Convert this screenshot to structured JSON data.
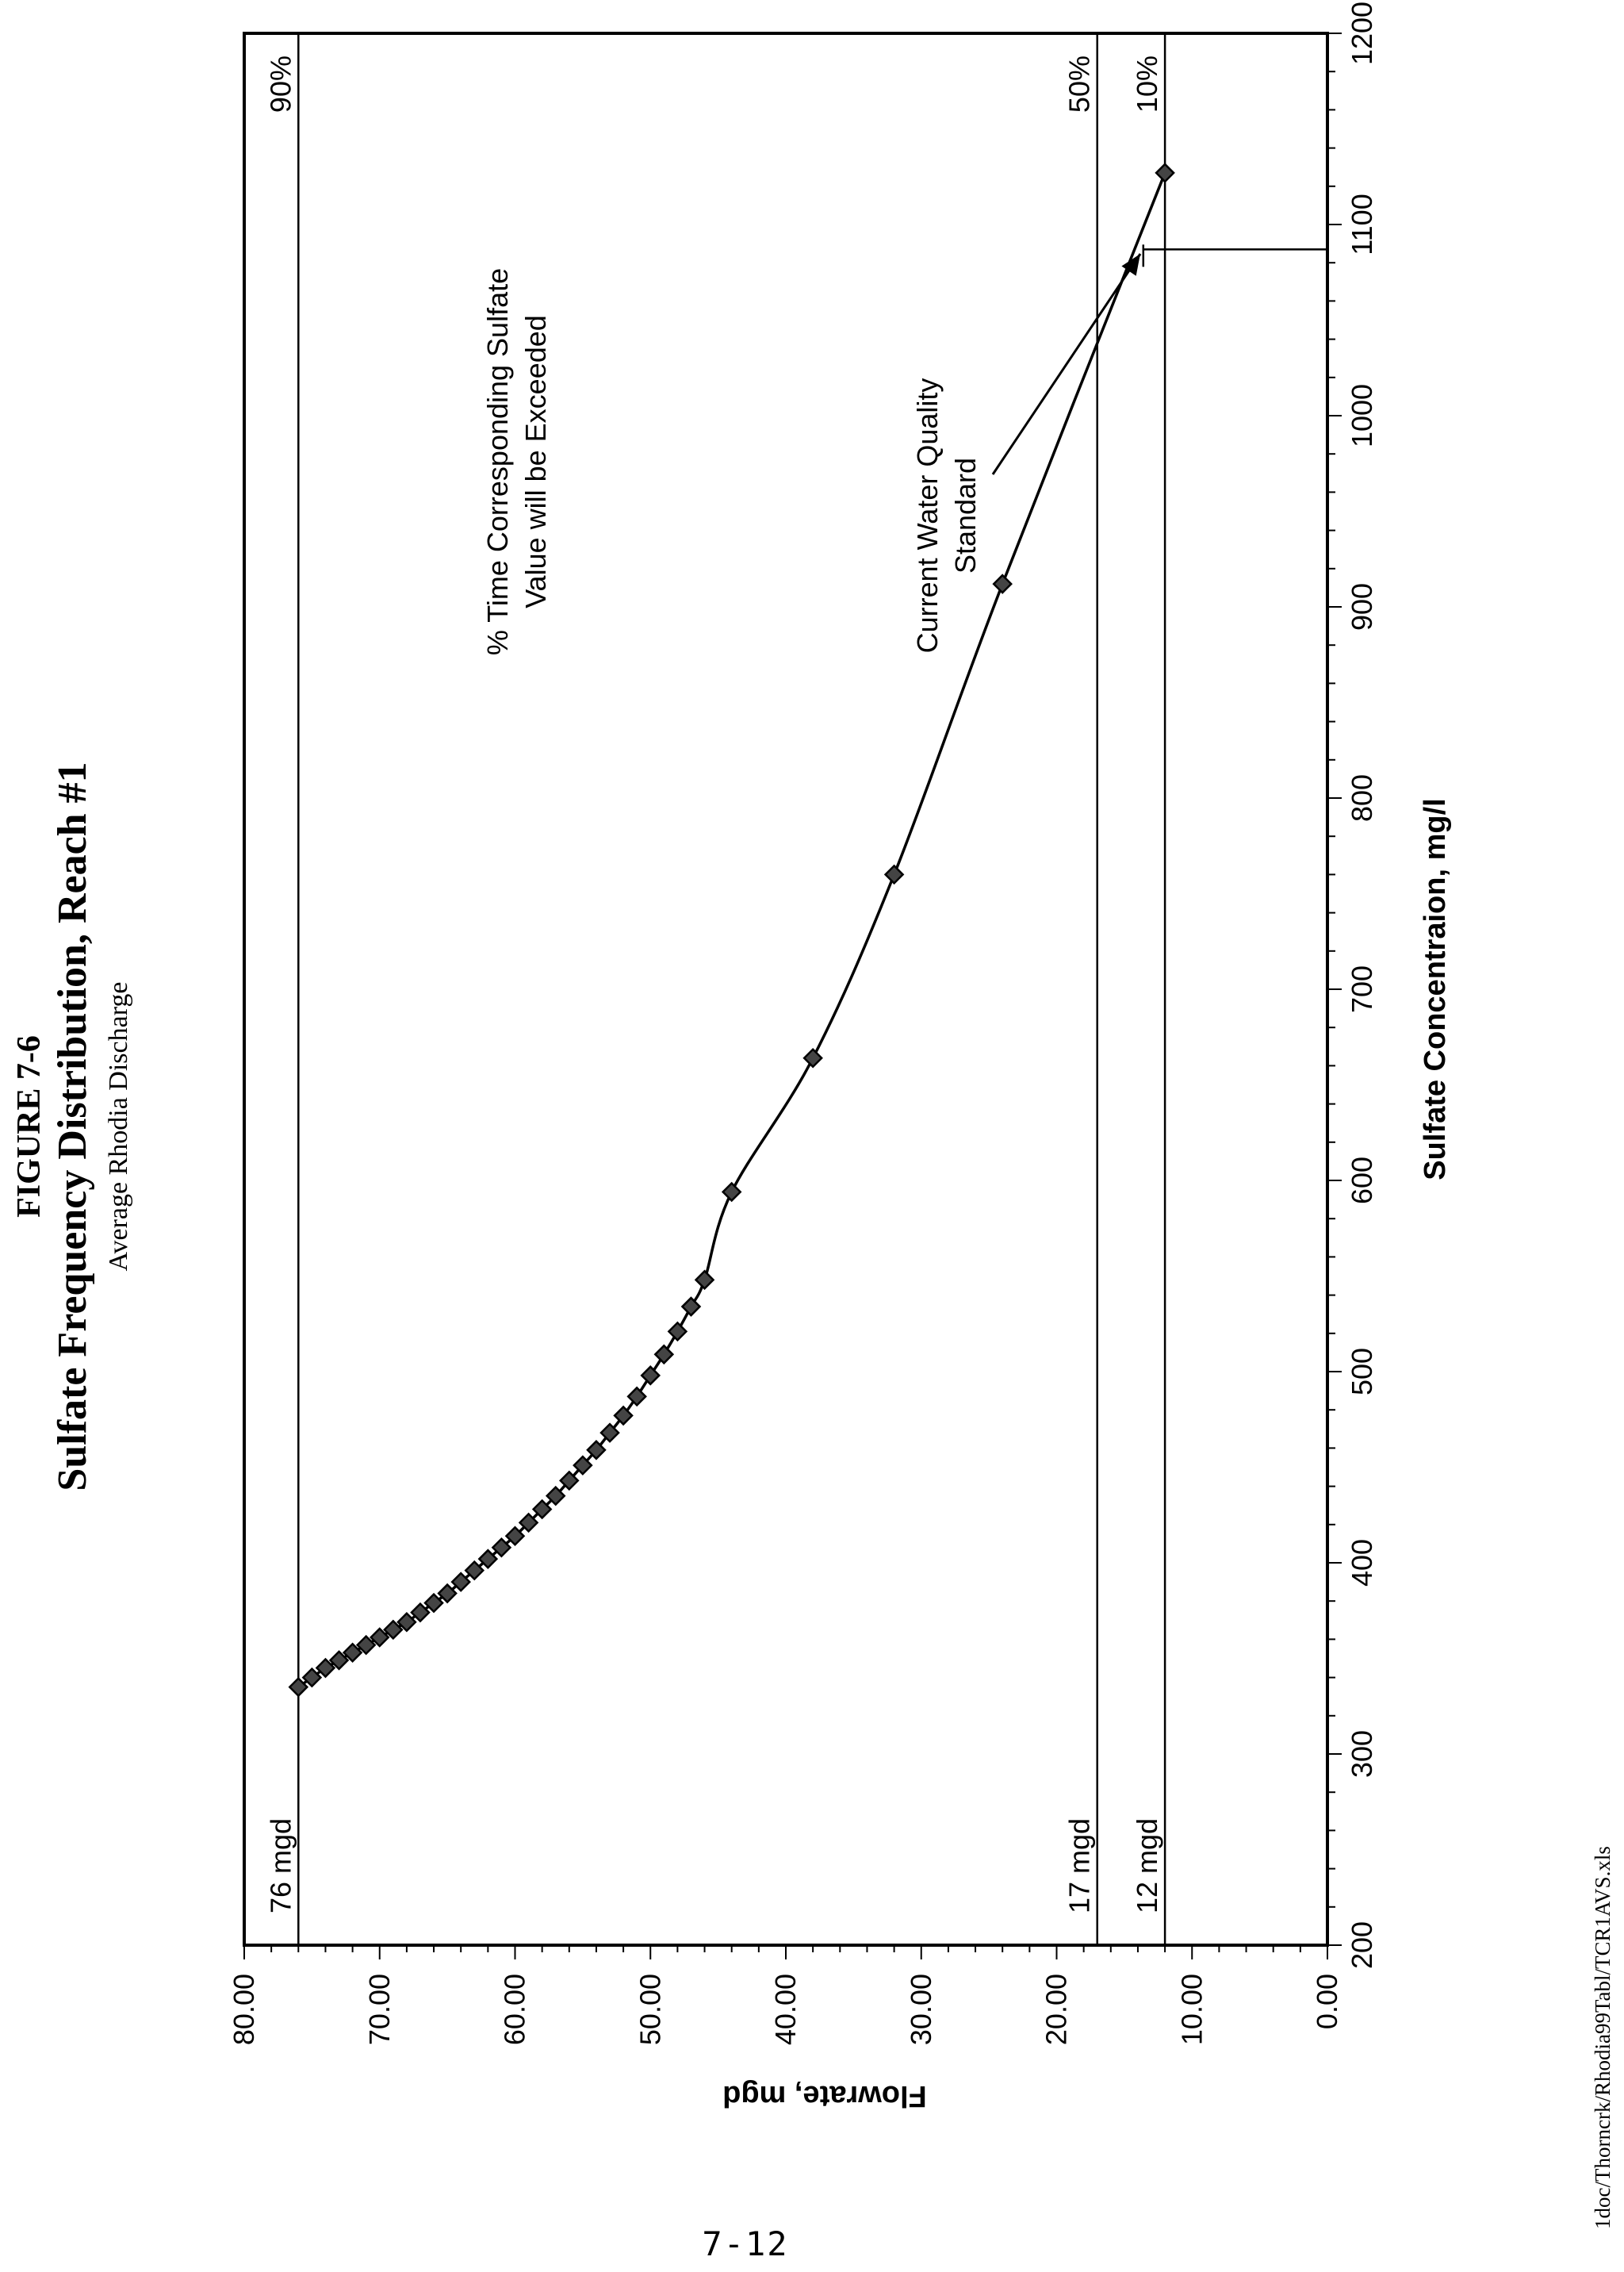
{
  "figure": {
    "label": "FIGURE 7-6",
    "title": "Sulfate Frequency Distribution, Reach #1",
    "subtitle": "Average Rhodia Discharge"
  },
  "footer": {
    "filepath": "1doc/Thorncrk/Rhodia99Tabl/TCR1AVS.xls",
    "page_number": "7-12"
  },
  "chart_data": {
    "type": "scatter",
    "title": "",
    "xlabel": "Sulfate Concentraion, mg/l",
    "ylabel": "Flowrate, mgd",
    "xlim": [
      200,
      1200
    ],
    "ylim": [
      0,
      80
    ],
    "x_ticks": [
      200,
      300,
      400,
      500,
      600,
      700,
      800,
      900,
      1000,
      1100,
      1200
    ],
    "y_ticks": [
      "0.00",
      "10.00",
      "20.00",
      "30.00",
      "40.00",
      "50.00",
      "60.00",
      "70.00",
      "80.00"
    ],
    "grid": false,
    "legend": "none",
    "series": [
      {
        "marker": "diamond",
        "line": "smooth",
        "x": [
          335,
          340,
          345,
          349,
          353,
          357,
          361,
          365,
          369,
          374,
          379,
          384,
          390,
          396,
          402,
          408,
          414,
          421,
          428,
          435,
          443,
          451,
          459,
          468,
          477,
          487,
          498,
          509,
          521,
          534,
          548,
          594,
          664,
          760,
          912,
          1127
        ],
        "y": [
          76,
          75,
          74,
          73,
          72,
          71,
          70,
          69,
          68,
          67,
          66,
          65,
          64,
          63,
          62,
          61,
          60,
          59,
          58,
          57,
          56,
          55,
          54,
          53,
          52,
          51,
          50,
          49,
          48,
          47,
          46,
          44,
          38,
          32,
          24,
          12
        ]
      }
    ],
    "reference_lines": [
      {
        "flow": 76,
        "flow_label": "76 mgd",
        "pct_label": "90%"
      },
      {
        "flow": 17,
        "flow_label": "17 mgd",
        "pct_label": "50%"
      },
      {
        "flow": 12,
        "flow_label": "12 mgd",
        "pct_label": "10%"
      }
    ],
    "standard": {
      "concentration": 1087,
      "flow_top": 13.6
    },
    "annotations": {
      "percent_note": [
        "% Time Corresponding Sulfate",
        "Value will be Exceeded"
      ],
      "standard_note": [
        "Current Water Quality",
        "Standard"
      ]
    }
  }
}
